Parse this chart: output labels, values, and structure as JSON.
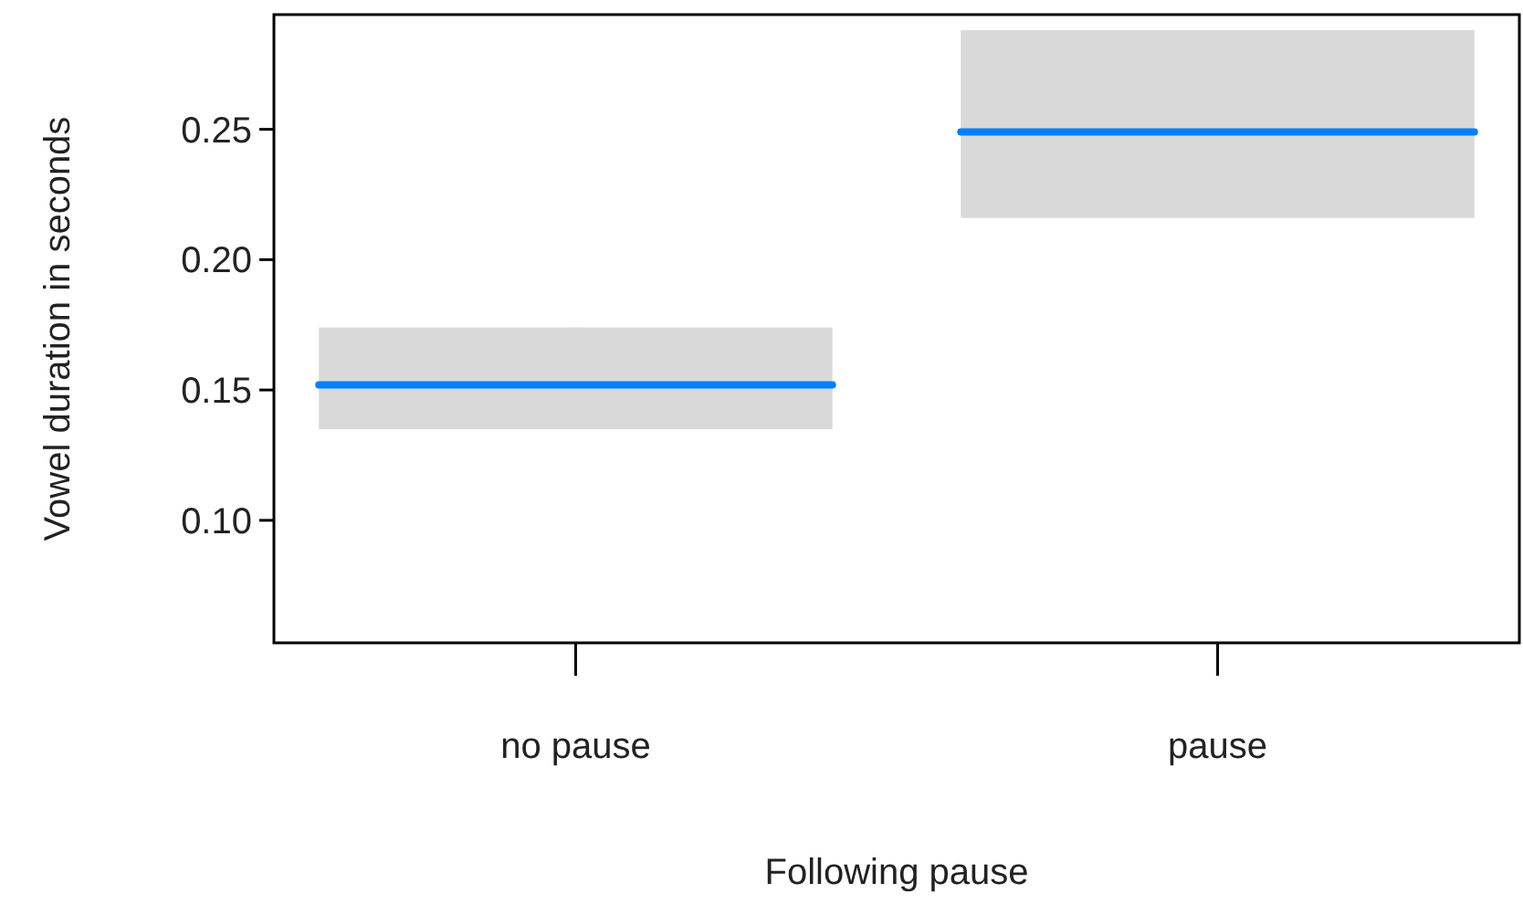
{
  "chart_data": {
    "type": "box",
    "xlabel": "Following pause",
    "ylabel": "Vowel duration in seconds",
    "categories": [
      "no pause",
      "pause"
    ],
    "color": "#0080ff",
    "ylim": [
      0.053,
      0.294
    ],
    "yticks": [
      {
        "value": 0.1,
        "label": "0.10"
      },
      {
        "value": 0.15,
        "label": "0.15"
      },
      {
        "value": 0.2,
        "label": "0.20"
      },
      {
        "value": 0.25,
        "label": "0.25"
      }
    ],
    "grid": false,
    "series": [
      {
        "color": "#d9d9d9",
        "boxes": [
          {
            "low": 0.135,
            "q1": 0.135,
            "median": 0.152,
            "q3": 0.174,
            "high": 0.174
          },
          {
            "low": 0.216,
            "q1": 0.216,
            "median": 0.249,
            "q3": 0.288,
            "high": 0.288
          }
        ]
      }
    ]
  }
}
